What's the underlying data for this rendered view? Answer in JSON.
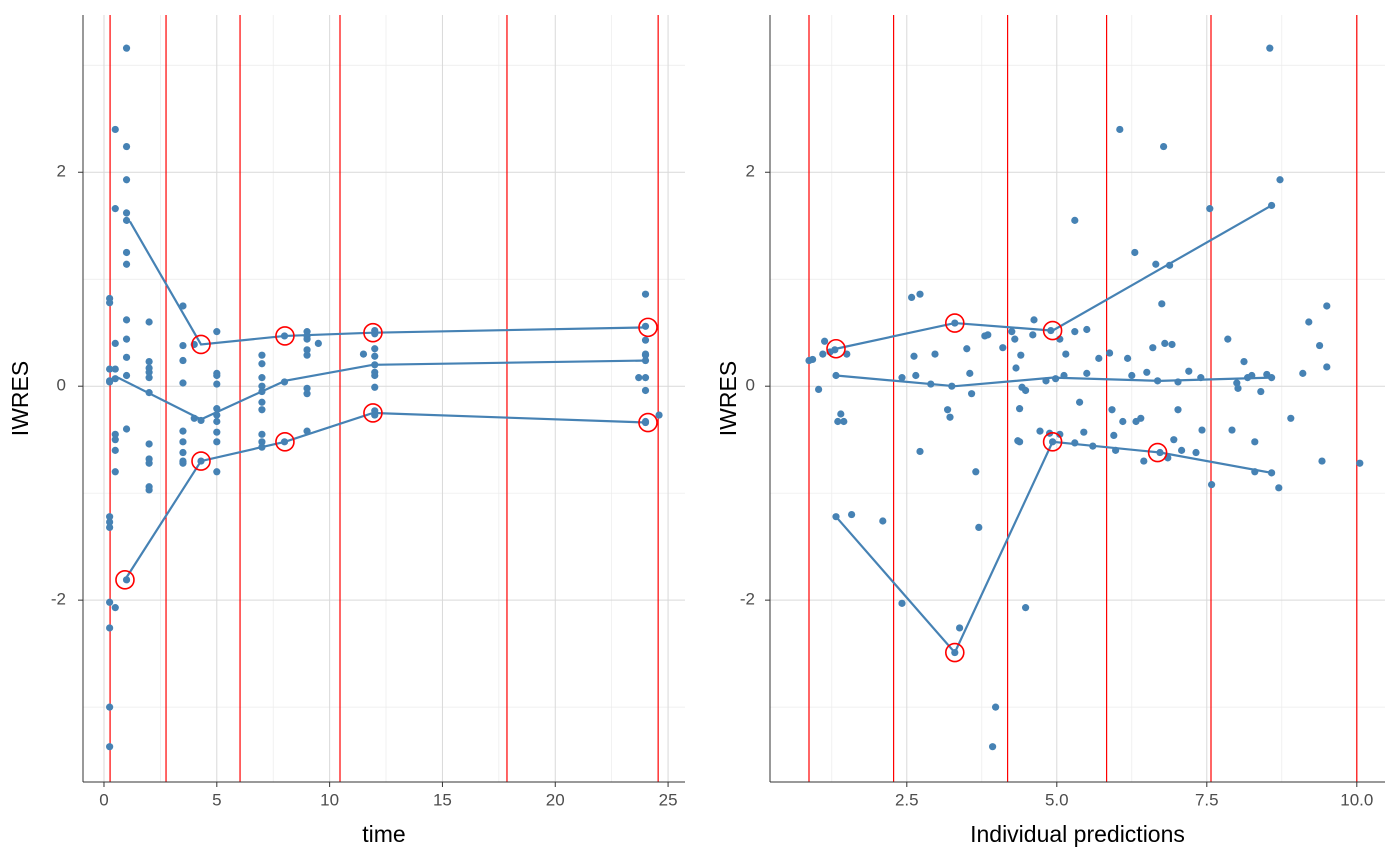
{
  "chart_data": [
    {
      "type": "scatter",
      "x_label": "time",
      "y_label": "IWRES",
      "xlim": [
        -0.93,
        25.75
      ],
      "ylim": [
        -3.7,
        3.47
      ],
      "xticks": [
        0,
        5,
        10,
        15,
        20,
        25
      ],
      "yticks": [
        -2,
        0,
        2
      ],
      "grid": true,
      "color": "#4682b4",
      "x": [
        0.25,
        0.25,
        0.25,
        0.25,
        0.25,
        0.25,
        0.25,
        0.25,
        0.25,
        0.25,
        0.25,
        0.25,
        0.5,
        0.5,
        0.5,
        0.5,
        0.5,
        0.5,
        0.5,
        0.5,
        0.5,
        0.5,
        1,
        1,
        1,
        1,
        1,
        1,
        1,
        1,
        1,
        1,
        1,
        1,
        1,
        2,
        2,
        2,
        2,
        2,
        2,
        2,
        2,
        2,
        2,
        2,
        3.5,
        3.5,
        3.5,
        3.5,
        3.5,
        3.5,
        3.5,
        3.5,
        3.5,
        4,
        4,
        4.3,
        4.3,
        5,
        5,
        5,
        5,
        5,
        5,
        5,
        5,
        5,
        5,
        7,
        7,
        7,
        7,
        7,
        7,
        7,
        7,
        7,
        7,
        8,
        8,
        8,
        9,
        9,
        9,
        9,
        9,
        9,
        9,
        9,
        9.5,
        11.5,
        12,
        12,
        12,
        12,
        12,
        12,
        12,
        12,
        12,
        12,
        24,
        24,
        24,
        24,
        24,
        24,
        24,
        24,
        24,
        24,
        24.6,
        23.7
      ],
      "values": [
        0.82,
        0.78,
        0.16,
        0.05,
        0.04,
        -1.22,
        -1.27,
        -1.32,
        -2.02,
        -2.26,
        -3.0,
        -3.37,
        2.4,
        1.66,
        0.4,
        0.16,
        0.07,
        -0.45,
        -0.5,
        -0.6,
        -0.8,
        -2.07,
        3.16,
        2.24,
        1.93,
        1.62,
        1.55,
        1.25,
        1.14,
        0.62,
        0.44,
        0.27,
        0.1,
        -0.4,
        -1.81,
        0.6,
        0.23,
        0.17,
        0.13,
        0.08,
        -0.06,
        -0.54,
        -0.68,
        -0.72,
        -0.94,
        -0.97,
        0.75,
        0.38,
        0.24,
        0.03,
        -0.42,
        -0.52,
        -0.62,
        -0.7,
        -0.72,
        -0.3,
        0.39,
        -0.32,
        -0.7,
        0.51,
        0.12,
        0.1,
        0.02,
        -0.21,
        -0.27,
        -0.33,
        -0.43,
        -0.52,
        -0.8,
        0.29,
        0.21,
        0.08,
        0.0,
        -0.05,
        -0.15,
        -0.22,
        -0.45,
        -0.52,
        -0.57,
        0.47,
        0.04,
        -0.52,
        0.51,
        0.47,
        0.44,
        0.34,
        0.29,
        -0.02,
        -0.07,
        -0.42,
        0.4,
        0.3,
        0.52,
        0.49,
        0.35,
        0.28,
        0.2,
        0.13,
        0.1,
        -0.01,
        -0.23,
        -0.27,
        0.86,
        0.56,
        0.43,
        0.3,
        0.29,
        0.24,
        0.08,
        -0.04,
        -0.33,
        -0.34,
        -0.27,
        0.08
      ],
      "lines": [
        {
          "x": [
            1.15,
            4.3,
            8.02,
            11.92,
            24.11
          ],
          "values": [
            1.54,
            0.39,
            0.47,
            0.5,
            0.55
          ]
        },
        {
          "x": [
            0.62,
            4.3,
            8.02,
            11.92,
            24.11
          ],
          "values": [
            0.08,
            -0.31,
            0.05,
            0.2,
            0.24
          ]
        },
        {
          "x": [
            0.93,
            4.3,
            8.02,
            11.92,
            24.11
          ],
          "values": [
            -1.81,
            -0.7,
            -0.52,
            -0.25,
            -0.34
          ]
        }
      ],
      "circles": {
        "x": [
          0.93,
          4.3,
          4.3,
          8.02,
          8.02,
          11.92,
          11.92,
          24.11,
          24.11
        ],
        "values": [
          -1.81,
          0.39,
          -0.7,
          0.47,
          -0.52,
          0.5,
          -0.25,
          0.55,
          -0.34
        ],
        "color": "#ff0000"
      },
      "vlines": [
        0.27,
        2.75,
        6.03,
        10.46,
        17.86,
        24.56
      ],
      "vline_color": "#ff0000"
    },
    {
      "type": "scatter",
      "x_label": "Individual predictions",
      "y_label": "IWRES",
      "xlim": [
        0.22,
        10.47
      ],
      "ylim": [
        -3.7,
        3.47
      ],
      "xticks": [
        2.5,
        {
          "value": 5,
          "label": "5.0"
        },
        7.5,
        {
          "value": 10,
          "label": "10.0"
        }
      ],
      "yticks": [
        -2,
        0,
        2
      ],
      "grid": true,
      "color": "#4682b4",
      "x": [
        0.87,
        0.93,
        1.03,
        1.1,
        1.13,
        1.22,
        1.3,
        1.32,
        1.32,
        1.35,
        1.4,
        1.45,
        1.5,
        1.58,
        2.1,
        2.42,
        2.42,
        2.58,
        2.62,
        2.65,
        2.72,
        2.72,
        2.9,
        2.97,
        3.18,
        3.22,
        3.25,
        3.3,
        3.3,
        3.38,
        3.5,
        3.55,
        3.58,
        3.65,
        3.7,
        3.8,
        3.85,
        3.93,
        3.98,
        4.1,
        4.25,
        4.3,
        4.32,
        4.35,
        4.38,
        4.38,
        4.4,
        4.42,
        4.48,
        4.48,
        4.6,
        4.62,
        4.72,
        4.82,
        4.88,
        4.9,
        4.93,
        4.98,
        5.05,
        5.05,
        5.12,
        5.15,
        5.3,
        5.3,
        5.3,
        5.38,
        5.45,
        5.5,
        5.5,
        5.6,
        5.7,
        5.88,
        5.92,
        5.95,
        5.98,
        6.05,
        6.1,
        6.18,
        6.25,
        6.3,
        6.32,
        6.4,
        6.45,
        6.5,
        6.6,
        6.65,
        6.68,
        6.72,
        6.75,
        6.78,
        6.8,
        6.85,
        6.88,
        6.92,
        6.95,
        7.02,
        7.02,
        7.08,
        7.2,
        7.32,
        7.4,
        7.42,
        7.55,
        7.58,
        7.85,
        7.92,
        8.0,
        8.02,
        8.12,
        8.18,
        8.25,
        8.3,
        8.3,
        8.4,
        8.5,
        8.55,
        8.58,
        8.58,
        8.58,
        8.72,
        8.7,
        8.9,
        9.1,
        9.2,
        9.38,
        9.42,
        9.5,
        9.5,
        10.05
      ],
      "values": [
        0.24,
        0.25,
        -0.03,
        0.3,
        0.42,
        0.32,
        0.34,
        0.1,
        -1.22,
        -0.33,
        -0.26,
        -0.33,
        0.3,
        -1.2,
        -1.26,
        0.08,
        -2.03,
        0.83,
        0.28,
        0.1,
        0.86,
        -0.61,
        0.02,
        0.3,
        -0.22,
        -0.29,
        0.0,
        0.59,
        -2.49,
        -2.26,
        0.35,
        0.12,
        -0.07,
        -0.8,
        -1.32,
        0.47,
        0.48,
        -3.37,
        -3.0,
        0.36,
        0.51,
        0.44,
        0.17,
        -0.51,
        -0.52,
        -0.21,
        0.29,
        -0.01,
        -0.04,
        -2.07,
        0.48,
        0.62,
        -0.42,
        0.05,
        -0.44,
        0.52,
        -0.52,
        0.07,
        -0.45,
        0.44,
        0.1,
        0.3,
        1.55,
        0.51,
        -0.53,
        -0.15,
        -0.43,
        0.12,
        0.53,
        -0.56,
        0.26,
        0.31,
        -0.22,
        -0.46,
        -0.6,
        2.4,
        -0.33,
        0.26,
        0.1,
        1.25,
        -0.33,
        -0.3,
        -0.7,
        0.13,
        0.36,
        1.14,
        0.05,
        -0.62,
        0.77,
        2.24,
        0.4,
        -0.67,
        1.13,
        0.39,
        -0.5,
        0.04,
        -0.22,
        -0.6,
        0.14,
        -0.62,
        0.08,
        -0.41,
        1.66,
        -0.92,
        0.44,
        -0.41,
        0.03,
        -0.02,
        0.23,
        0.08,
        0.1,
        -0.8,
        -0.52,
        -0.05,
        0.11,
        3.16,
        1.69,
        0.08,
        -0.81,
        1.93,
        -0.95,
        -0.3,
        0.12,
        0.6,
        0.38,
        -0.7,
        0.75,
        0.18,
        -0.72
      ],
      "lines": [
        {
          "x": [
            1.32,
            3.3,
            4.93,
            8.58
          ],
          "values": [
            0.35,
            0.59,
            0.52,
            1.69
          ]
        },
        {
          "x": [
            1.32,
            3.3,
            4.93,
            6.72,
            8.58
          ],
          "values": [
            0.1,
            0.0,
            0.08,
            0.05,
            0.08
          ]
        },
        {
          "x": [
            1.32,
            3.3,
            4.93,
            6.72,
            8.58
          ],
          "values": [
            -1.22,
            -2.49,
            -0.52,
            -0.62,
            -0.81
          ]
        }
      ],
      "circles": {
        "x": [
          1.32,
          3.3,
          3.3,
          4.93,
          4.93,
          6.68
        ],
        "values": [
          0.35,
          0.59,
          -2.49,
          0.52,
          -0.52,
          -0.62
        ],
        "color": "#ff0000"
      },
      "vlines": [
        0.87,
        2.28,
        4.18,
        5.83,
        7.57,
        10.0
      ],
      "vline_color": "#ff0000"
    }
  ]
}
